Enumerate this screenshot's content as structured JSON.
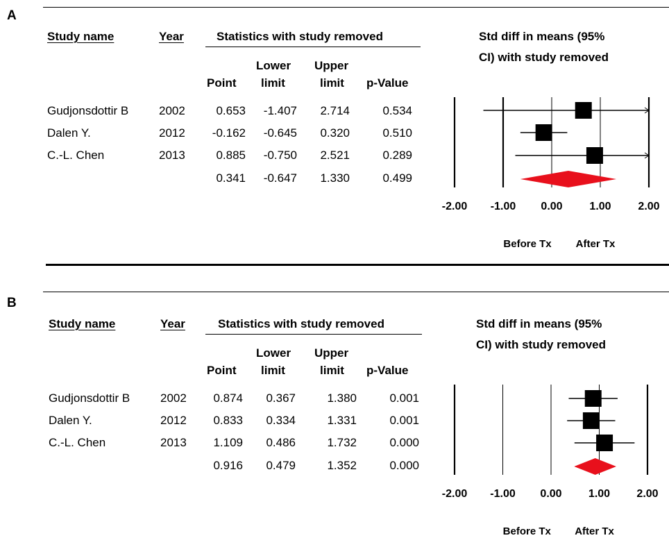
{
  "chart_data": [
    {
      "type": "forest",
      "panel_label": "A",
      "table": {
        "headers": {
          "study_name": "Study name",
          "year": "Year",
          "stats_group": "Statistics with study removed",
          "point": "Point",
          "lower": [
            "Lower",
            "limit"
          ],
          "upper": [
            "Upper",
            "limit"
          ],
          "pvalue": "p-Value"
        },
        "rows": [
          {
            "study": "Gudjonsdottir B",
            "year": "2002",
            "point": "0.653",
            "lower": "-1.407",
            "upper": "2.714",
            "p": "0.534"
          },
          {
            "study": "Dalen Y.",
            "year": "2012",
            "point": "-0.162",
            "lower": "-0.645",
            "upper": "0.320",
            "p": "0.510"
          },
          {
            "study": "C.-L. Chen",
            "year": "2013",
            "point": "0.885",
            "lower": "-0.750",
            "upper": "2.521",
            "p": "0.289"
          }
        ],
        "summary": {
          "point": "0.341",
          "lower": "-0.647",
          "upper": "1.330",
          "p": "0.499"
        }
      },
      "plot_title": [
        "Std diff in means (95%",
        "CI) with study removed"
      ],
      "studies": [
        {
          "point": 0.653,
          "lower": -1.407,
          "upper": 2.714
        },
        {
          "point": -0.162,
          "lower": -0.645,
          "upper": 0.32
        },
        {
          "point": 0.885,
          "lower": -0.75,
          "upper": 2.521
        }
      ],
      "pooled": {
        "point": 0.341,
        "lower": -0.647,
        "upper": 1.33
      },
      "xlim": [
        -2,
        2
      ],
      "ticks": [
        "-2.00",
        "-1.00",
        "0.00",
        "1.00",
        "2.00"
      ],
      "favours_left": "Before Tx",
      "favours_right": "After Tx",
      "diamond_color": "#e8101c"
    },
    {
      "type": "forest",
      "panel_label": "B",
      "table": {
        "headers": {
          "study_name": "Study name",
          "year": "Year",
          "stats_group": "Statistics with study removed",
          "point": "Point",
          "lower": [
            "Lower",
            "limit"
          ],
          "upper": [
            "Upper",
            "limit"
          ],
          "pvalue": "p-Value"
        },
        "rows": [
          {
            "study": "Gudjonsdottir B",
            "year": "2002",
            "point": "0.874",
            "lower": "0.367",
            "upper": "1.380",
            "p": "0.001"
          },
          {
            "study": "Dalen Y.",
            "year": "2012",
            "point": "0.833",
            "lower": "0.334",
            "upper": "1.331",
            "p": "0.001"
          },
          {
            "study": "C.-L. Chen",
            "year": "2013",
            "point": "1.109",
            "lower": "0.486",
            "upper": "1.732",
            "p": "0.000"
          }
        ],
        "summary": {
          "point": "0.916",
          "lower": "0.479",
          "upper": "1.352",
          "p": "0.000"
        }
      },
      "plot_title": [
        "Std diff in means (95%",
        "CI) with study removed"
      ],
      "studies": [
        {
          "point": 0.874,
          "lower": 0.367,
          "upper": 1.38
        },
        {
          "point": 0.833,
          "lower": 0.334,
          "upper": 1.331
        },
        {
          "point": 1.109,
          "lower": 0.486,
          "upper": 1.732
        }
      ],
      "pooled": {
        "point": 0.916,
        "lower": 0.479,
        "upper": 1.352
      },
      "xlim": [
        -2,
        2
      ],
      "ticks": [
        "-2.00",
        "-1.00",
        "0.00",
        "1.00",
        "2.00"
      ],
      "favours_left": "Before Tx",
      "favours_right": "After Tx",
      "diamond_color": "#e8101c"
    }
  ]
}
